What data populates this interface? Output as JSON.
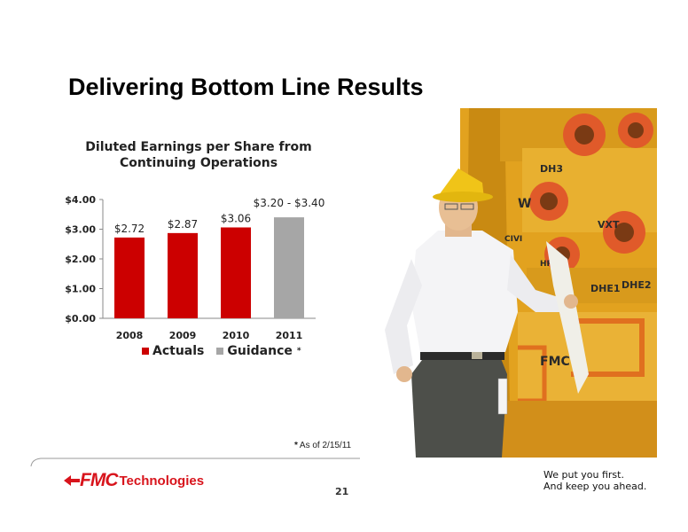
{
  "slide": {
    "title": "Delivering Bottom Line Results",
    "page_number": "21",
    "footnote_star": "*",
    "footnote": "As of 2/15/11",
    "tagline_line1": "We put you first.",
    "tagline_line2": "And keep you ahead.",
    "logo_fmc": "FMC",
    "logo_technologies": "Technologies",
    "brand_color": "#d8141c"
  },
  "photo": {
    "equipment_labels": [
      "DH3",
      "VXT",
      "CIVI",
      "HR",
      "DHE1",
      "DHE2",
      "FMC",
      "W"
    ]
  },
  "chart_data": {
    "type": "bar",
    "title": "Diluted Earnings per Share from Continuing Operations",
    "categories": [
      "2008",
      "2009",
      "2010",
      "2011"
    ],
    "values": [
      2.72,
      2.87,
      3.06,
      3.4
    ],
    "guidance_low": 3.2,
    "data_labels": [
      "$2.72",
      "$2.87",
      "$3.06",
      "$3.20 - $3.40"
    ],
    "series_type": [
      "Actuals",
      "Actuals",
      "Actuals",
      "Guidance"
    ],
    "colors": {
      "Actuals": "#cc0000",
      "Guidance": "#a6a6a6"
    },
    "legend": [
      "Actuals",
      "Guidance"
    ],
    "legend_asterisk": "*",
    "yticks": [
      0,
      1,
      2,
      3,
      4
    ],
    "ytick_labels": [
      "$0.00",
      "$1.00",
      "$2.00",
      "$3.00",
      "$4.00"
    ],
    "ylim": [
      0,
      4
    ],
    "grid": false,
    "legend_position": "bottom"
  }
}
